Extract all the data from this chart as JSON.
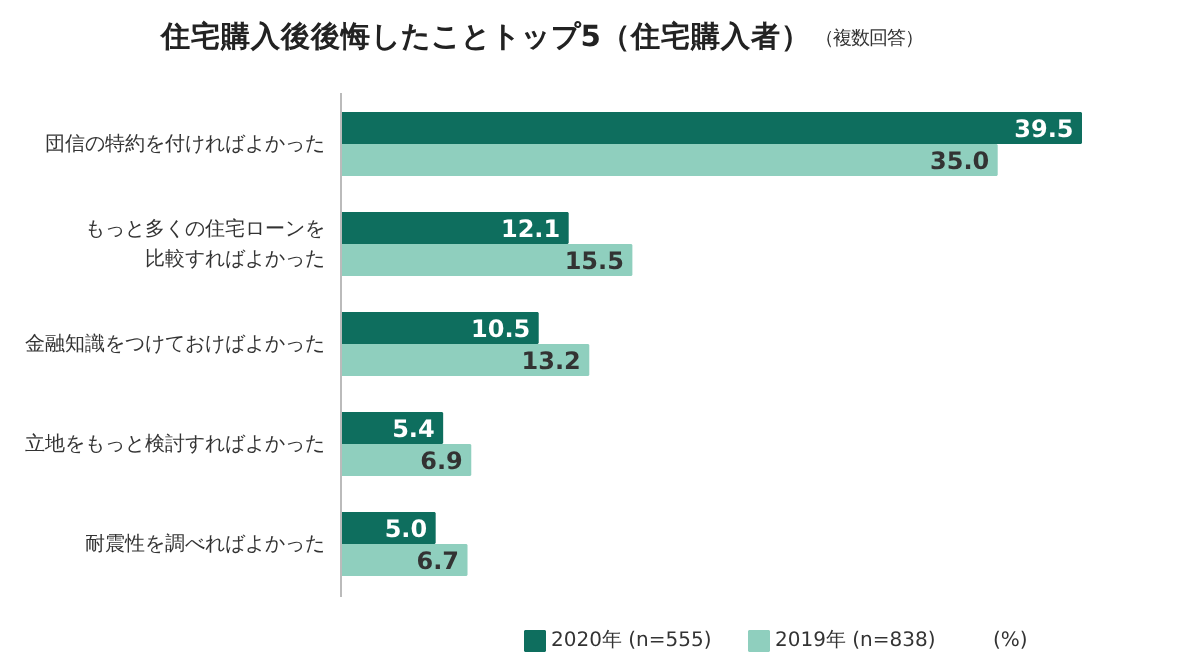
{
  "chart_data": {
    "type": "bar",
    "orientation": "horizontal",
    "title": "住宅購入後後悔したことトップ5（住宅購入者）",
    "subtitle": "（複数回答）",
    "categories": [
      "団信の特約を付ければよかった",
      "もっと多くの住宅ローンを比較すればよかった",
      "金融知識をつけておけばよかった",
      "立地をもっと検討すればよかった",
      "耐震性を調べればよかった"
    ],
    "series": [
      {
        "name": "2020年 (n=555)",
        "color": "#0e6e5e",
        "values": [
          39.5,
          12.1,
          10.5,
          5.4,
          5.0
        ],
        "value_labels": [
          "39.5",
          "12.1",
          "10.5",
          "5.4",
          "5.0"
        ]
      },
      {
        "name": "2019年 (n=838)",
        "color": "#8fcfbe",
        "values": [
          35.0,
          15.5,
          13.2,
          6.9,
          6.7
        ],
        "value_labels": [
          "35.0",
          "15.5",
          "13.2",
          "6.9",
          "6.7"
        ]
      }
    ],
    "legend": "bottom right",
    "annotations": [
      "(%)"
    ]
  }
}
